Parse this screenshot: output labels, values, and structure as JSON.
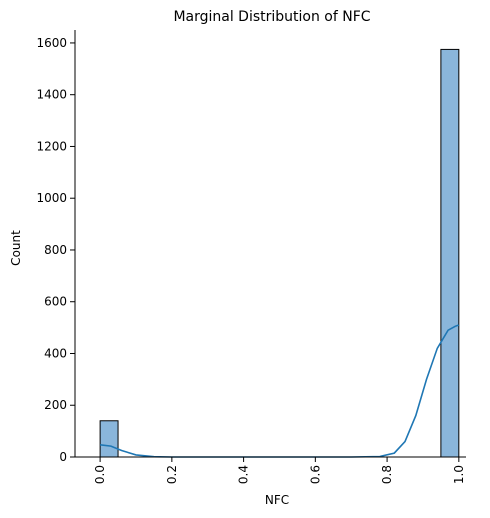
{
  "chart_data": {
    "type": "bar",
    "subtype": "histogram-with-kde",
    "title": "Marginal Distribution of NFC",
    "xlabel": "NFC",
    "ylabel": "Count",
    "xlim": [
      -0.07,
      1.02
    ],
    "ylim": [
      0,
      1650
    ],
    "x_ticks": [
      "0.0",
      "0.2",
      "0.4",
      "0.6",
      "0.8",
      "1.0"
    ],
    "y_ticks": [
      "0",
      "200",
      "400",
      "600",
      "800",
      "1000",
      "1200",
      "1400",
      "1600"
    ],
    "x_tick_rotation": -90,
    "grid": false,
    "legend": "none",
    "bar_color": "#8ab6db",
    "bar_edge_color": "#000000",
    "kde_color": "#1f77b4",
    "bins": [
      {
        "x0": 0.0,
        "x1": 0.05,
        "count": 140
      },
      {
        "x0": 0.95,
        "x1": 1.0,
        "count": 1575
      }
    ],
    "kde": {
      "x": [
        0.0,
        0.03,
        0.06,
        0.1,
        0.15,
        0.2,
        0.3,
        0.5,
        0.7,
        0.78,
        0.82,
        0.85,
        0.88,
        0.91,
        0.94,
        0.97,
        0.99,
        1.0
      ],
      "y": [
        47,
        42,
        25,
        8,
        1,
        0,
        0,
        0,
        0,
        2,
        15,
        60,
        160,
        300,
        420,
        490,
        505,
        510
      ]
    }
  }
}
